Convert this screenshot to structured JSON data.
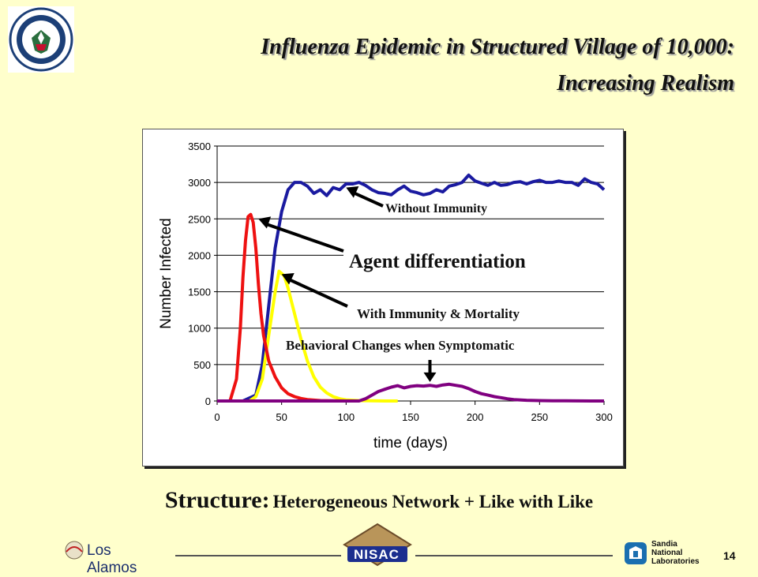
{
  "slide": {
    "title_line1": "Influenza Epidemic in Structured Village of 10,000:",
    "title_line2": "Increasing Realism",
    "caption_big": "Structure:",
    "caption_small": "Heterogeneous Network + Like with Like",
    "page_number": "14"
  },
  "logos": {
    "dhs_seal": "U.S. DEPARTMENT OF HOMELAND SECURITY",
    "los_alamos": "Los Alamos",
    "nisac": "NISAC",
    "sandia_line1": "Sandia",
    "sandia_line2": "National",
    "sandia_line3": "Laboratories"
  },
  "chart_data": {
    "type": "line",
    "xlabel": "time (days)",
    "ylabel": "Number Infected",
    "xlim": [
      0,
      300
    ],
    "ylim": [
      0,
      3500
    ],
    "xticks": [
      0,
      50,
      100,
      150,
      200,
      250,
      300
    ],
    "yticks": [
      0,
      500,
      1000,
      1500,
      2000,
      2500,
      3000,
      3500
    ],
    "grid": "horizontal",
    "series": [
      {
        "color": "#1A1AA0",
        "x": [
          0,
          20,
          30,
          35,
          40,
          45,
          50,
          55,
          60,
          65,
          70,
          75,
          80,
          85,
          90,
          95,
          100,
          105,
          110,
          115,
          120,
          125,
          130,
          135,
          140,
          145,
          150,
          155,
          160,
          165,
          170,
          175,
          180,
          185,
          190,
          195,
          200,
          205,
          210,
          215,
          220,
          225,
          230,
          235,
          240,
          245,
          250,
          255,
          260,
          265,
          270,
          275,
          280,
          285,
          290,
          295,
          300
        ],
        "y": [
          0,
          0,
          80,
          500,
          1300,
          2100,
          2600,
          2900,
          3000,
          3000,
          2950,
          2850,
          2900,
          2820,
          2930,
          2900,
          2980,
          2980,
          3000,
          2960,
          2900,
          2860,
          2850,
          2830,
          2900,
          2950,
          2880,
          2860,
          2830,
          2850,
          2900,
          2870,
          2950,
          2970,
          3000,
          3100,
          3020,
          2990,
          2960,
          3000,
          2960,
          2970,
          3000,
          3010,
          2980,
          3010,
          3030,
          3000,
          3000,
          3020,
          3000,
          3000,
          2960,
          3050,
          3000,
          2980,
          2900
        ]
      },
      {
        "color": "#FFFF00",
        "x": [
          0,
          25,
          30,
          35,
          40,
          45,
          48,
          52,
          55,
          60,
          65,
          70,
          75,
          80,
          85,
          90,
          95,
          100,
          110,
          120,
          130,
          140
        ],
        "y": [
          0,
          0,
          60,
          300,
          900,
          1500,
          1780,
          1720,
          1550,
          1200,
          850,
          550,
          330,
          190,
          110,
          60,
          30,
          15,
          5,
          2,
          0,
          0
        ]
      },
      {
        "color": "#EE1111",
        "x": [
          0,
          10,
          15,
          18,
          20,
          22,
          24,
          26,
          28,
          30,
          32,
          34,
          36,
          40,
          45,
          50,
          55,
          60,
          65,
          70,
          80,
          90,
          100,
          110
        ],
        "y": [
          0,
          0,
          300,
          1000,
          1700,
          2200,
          2530,
          2560,
          2450,
          2100,
          1600,
          1200,
          900,
          550,
          330,
          180,
          100,
          60,
          35,
          20,
          5,
          2,
          0,
          0
        ]
      },
      {
        "color": "#800080",
        "x": [
          0,
          110,
          115,
          120,
          125,
          130,
          135,
          140,
          145,
          150,
          155,
          160,
          165,
          170,
          175,
          180,
          185,
          190,
          195,
          200,
          205,
          210,
          215,
          220,
          225,
          230,
          240,
          250,
          260,
          270,
          280,
          290,
          300
        ],
        "y": [
          0,
          0,
          30,
          80,
          130,
          160,
          190,
          210,
          180,
          200,
          210,
          205,
          215,
          200,
          220,
          230,
          215,
          200,
          170,
          130,
          100,
          80,
          60,
          45,
          30,
          20,
          10,
          5,
          3,
          2,
          1,
          0,
          0
        ]
      }
    ],
    "annotations": [
      {
        "text": "Without  Immunity",
        "target_x": 100,
        "target_y": 2930
      },
      {
        "text": "Agent differentiation",
        "target_x": 32,
        "target_y": 2500
      },
      {
        "text": "With Immunity & Mortality",
        "target_x": 50,
        "target_y": 1740
      },
      {
        "text": "Behavioral Changes when Symptomatic",
        "target_x": 165,
        "target_y": 240
      }
    ]
  }
}
